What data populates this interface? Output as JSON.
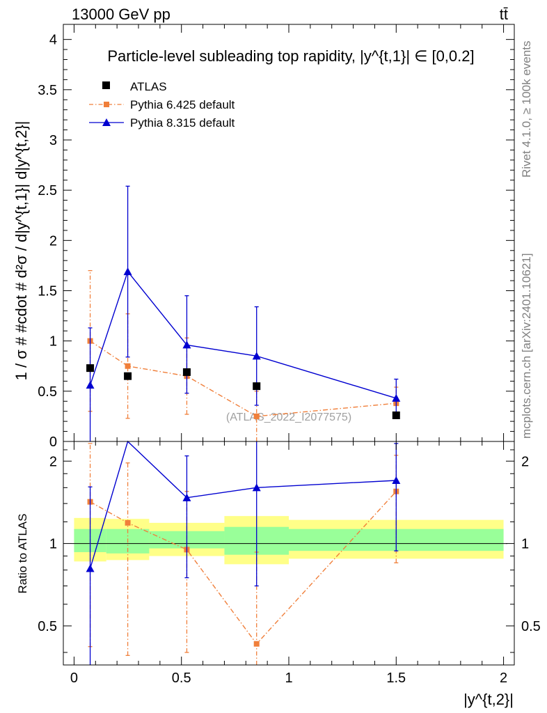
{
  "header": {
    "energy_label": "13000 GeV pp",
    "process_label": "tt̄"
  },
  "side_text": {
    "rivet": "Rivet 4.1.0, ≥ 100k events",
    "mcplots": "mcplots.cern.ch [arXiv:2401.10621]"
  },
  "chart_data": [
    {
      "type": "scatter",
      "panel": "main",
      "title": "Particle-level subleading top rapidity, |y^{t,1}| ∈ [0,0.2]",
      "xlabel": "|y^{t,2}|",
      "ylabel": "1 / σ # #cdot # d²σ / d|y^{t,1}| d|y^{t,2}|",
      "xlim": [
        -0.05,
        2.05
      ],
      "ylim": [
        0,
        4.15
      ],
      "yticks": [
        0,
        0.5,
        1,
        1.5,
        2,
        2.5,
        3,
        3.5,
        4
      ],
      "ytick_labels": [
        "0",
        "0.5",
        "1",
        "1.5",
        "2",
        "2.5",
        "3",
        "3.5",
        "4"
      ],
      "watermark": "(ATLAS_2022_I2077575)",
      "legend": [
        "ATLAS",
        "Pythia 6.425 default",
        "Pythia 8.315 default"
      ],
      "series": [
        {
          "name": "ATLAS",
          "color": "#000000",
          "marker": "square",
          "x": [
            0.075,
            0.25,
            0.525,
            0.85,
            1.5
          ],
          "y": [
            0.73,
            0.65,
            0.69,
            0.55,
            0.26
          ]
        },
        {
          "name": "Pythia 6.425 default",
          "color": "#f07f3a",
          "marker": "square",
          "line": "dashdot",
          "x": [
            0.075,
            0.25,
            0.525,
            0.85,
            1.5
          ],
          "y": [
            1.0,
            0.75,
            0.65,
            0.25,
            0.38
          ],
          "err_low": [
            0.7,
            0.52,
            0.38,
            0.25,
            0.0
          ],
          "err_high": [
            0.7,
            0.52,
            0.38,
            0.25,
            0.16
          ]
        },
        {
          "name": "Pythia 8.315 default",
          "color": "#0000d0",
          "marker": "triangle",
          "line": "solid",
          "x": [
            0.075,
            0.25,
            0.525,
            0.85,
            1.5
          ],
          "y": [
            0.56,
            1.69,
            0.96,
            0.85,
            0.43
          ],
          "err_low": [
            0.56,
            0.85,
            0.48,
            0.49,
            0.2
          ],
          "err_high": [
            0.57,
            0.85,
            0.49,
            0.49,
            0.19
          ]
        }
      ]
    },
    {
      "type": "scatter",
      "panel": "ratio",
      "ylabel": "Ratio to ATLAS",
      "xlabel": "|y^{t,2}|",
      "xlim": [
        -0.05,
        2.05
      ],
      "ylim": [
        0.36,
        2.36
      ],
      "yscale": "log",
      "yticks": [
        0.5,
        1,
        2
      ],
      "ytick_labels": [
        "0.5",
        "1",
        "2"
      ],
      "xticks": [
        0,
        0.5,
        1,
        1.5,
        2
      ],
      "xtick_labels": [
        "0",
        "0.5",
        "1",
        "1.5",
        "2"
      ],
      "bands": {
        "bin_edges": [
          0,
          0.15,
          0.35,
          0.7,
          1.0,
          2.0
        ],
        "total_low": [
          0.86,
          0.87,
          0.9,
          0.84,
          0.88
        ],
        "total_high": [
          1.24,
          1.23,
          1.19,
          1.26,
          1.22
        ],
        "stat_low": [
          0.93,
          0.92,
          0.96,
          0.91,
          0.94
        ],
        "stat_high": [
          1.13,
          1.13,
          1.11,
          1.15,
          1.13
        ],
        "total_color": "#ffff88",
        "stat_color": "#99ff99"
      },
      "series": [
        {
          "name": "Pythia 6.425 default",
          "color": "#f07f3a",
          "marker": "square",
          "line": "dashdot",
          "x": [
            0.075,
            0.25,
            0.525,
            0.85,
            1.5
          ],
          "y": [
            1.42,
            1.19,
            0.95,
            0.43,
            1.55
          ],
          "err_low": [
            1.0,
            0.8,
            0.55,
            0.43,
            0.7
          ],
          "err_high": [
            0.9,
            0.78,
            0.6,
            0.5,
            0.55
          ]
        },
        {
          "name": "Pythia 8.315 default",
          "color": "#0000d0",
          "marker": "triangle",
          "line": "solid",
          "x": [
            0.075,
            0.25,
            0.525,
            0.85,
            1.5
          ],
          "y": [
            0.81,
            2.45,
            1.47,
            1.6,
            1.7
          ],
          "err_low": [
            0.81,
            0.0,
            0.72,
            0.9,
            0.76
          ],
          "err_high": [
            0.8,
            0.0,
            0.62,
            0.9,
            0.62
          ]
        }
      ]
    }
  ]
}
